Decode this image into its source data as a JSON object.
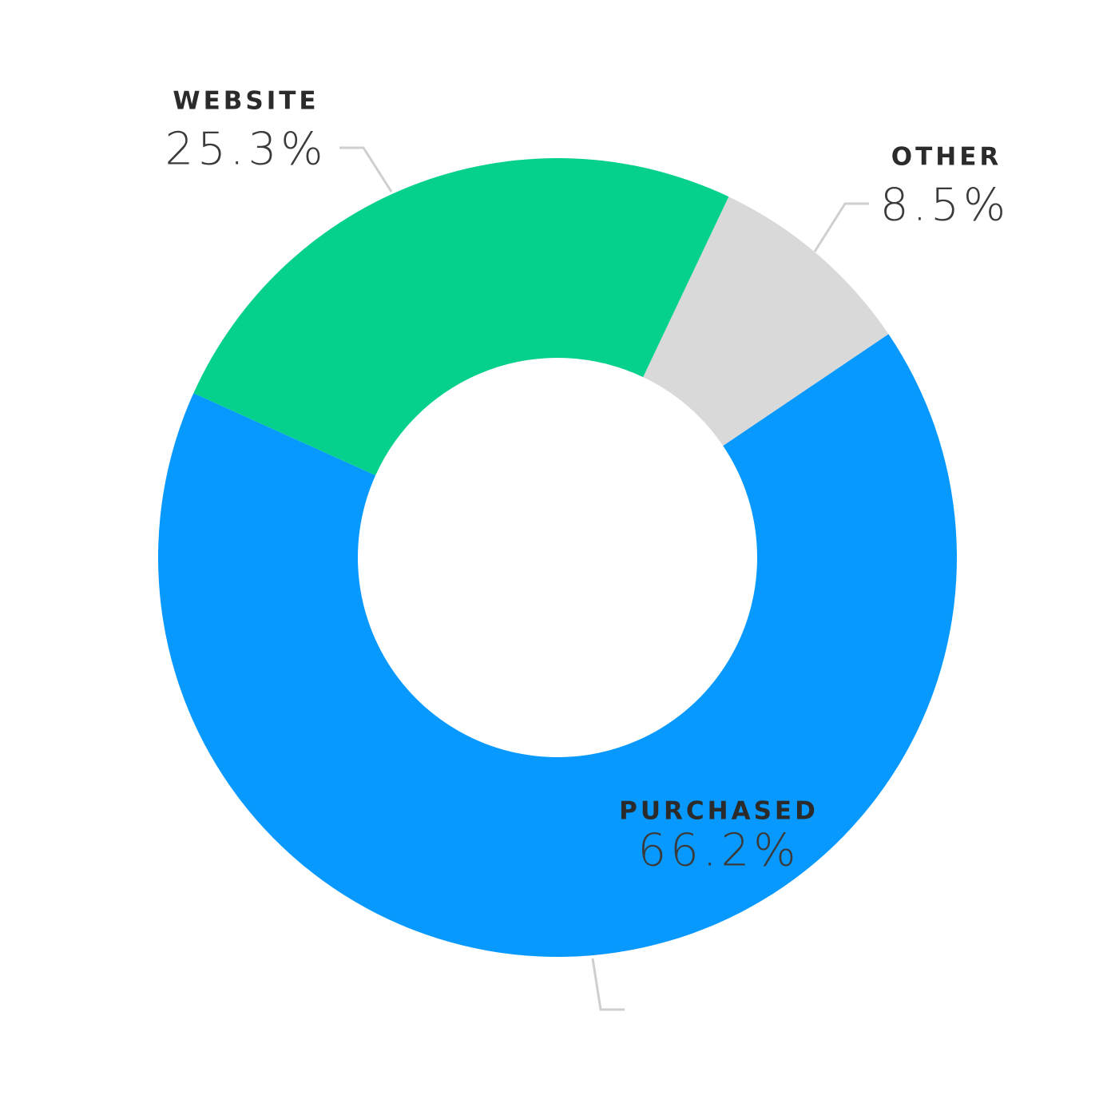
{
  "chart_data": {
    "type": "donut",
    "categories": [
      "WEBSITE",
      "OTHER",
      "PURCHASED"
    ],
    "values": [
      25.3,
      8.5,
      66.2
    ],
    "value_labels": [
      "25.3%",
      "8.5%",
      "66.2%"
    ],
    "colors": [
      "#05d08c",
      "#d9d9d9",
      "#0899ff"
    ]
  }
}
